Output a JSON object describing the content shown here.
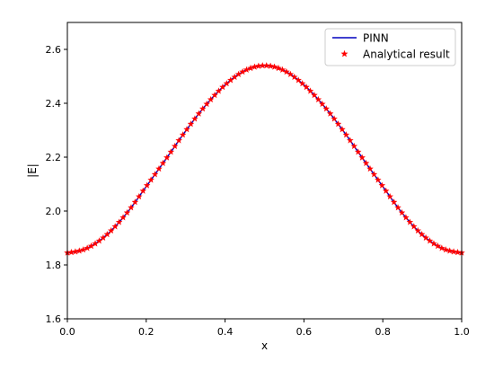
{
  "chart_data": {
    "type": "line",
    "xlabel": "x",
    "ylabel": "|E|",
    "xlim": [
      0.0,
      1.0
    ],
    "ylim": [
      1.6,
      2.7
    ],
    "x_ticks": [
      0.0,
      0.2,
      0.4,
      0.6,
      0.8,
      1.0
    ],
    "x_tick_labels": [
      "0.0",
      "0.2",
      "0.4",
      "0.6",
      "0.8",
      "1.0"
    ],
    "y_ticks": [
      1.6,
      1.8,
      2.0,
      2.2,
      2.4,
      2.6
    ],
    "y_tick_labels": [
      "1.6",
      "1.8",
      "2.0",
      "2.2",
      "2.4",
      "2.6"
    ],
    "grid": false,
    "legend_position": "top-right",
    "x": [
      0.0,
      0.05,
      0.1,
      0.15,
      0.2,
      0.25,
      0.3,
      0.35,
      0.4,
      0.45,
      0.5,
      0.55,
      0.6,
      0.65,
      0.7,
      0.75,
      0.8,
      0.85,
      0.9,
      0.95,
      1.0
    ],
    "series": [
      {
        "name": "PINN",
        "style": "line",
        "color": "#0000bf",
        "values": [
          1.845,
          1.862,
          1.912,
          1.991,
          2.091,
          2.193,
          2.297,
          2.391,
          2.468,
          2.521,
          2.54,
          2.521,
          2.468,
          2.391,
          2.297,
          2.193,
          2.091,
          1.991,
          1.912,
          1.862,
          1.845
        ]
      },
      {
        "name": "Analytical result",
        "style": "marker",
        "marker": "star",
        "color": "#ff0000",
        "values": [
          1.845,
          1.862,
          1.912,
          1.991,
          2.091,
          2.193,
          2.297,
          2.391,
          2.468,
          2.521,
          2.54,
          2.521,
          2.468,
          2.391,
          2.297,
          2.193,
          2.091,
          1.991,
          1.912,
          1.862,
          1.845
        ]
      }
    ]
  }
}
